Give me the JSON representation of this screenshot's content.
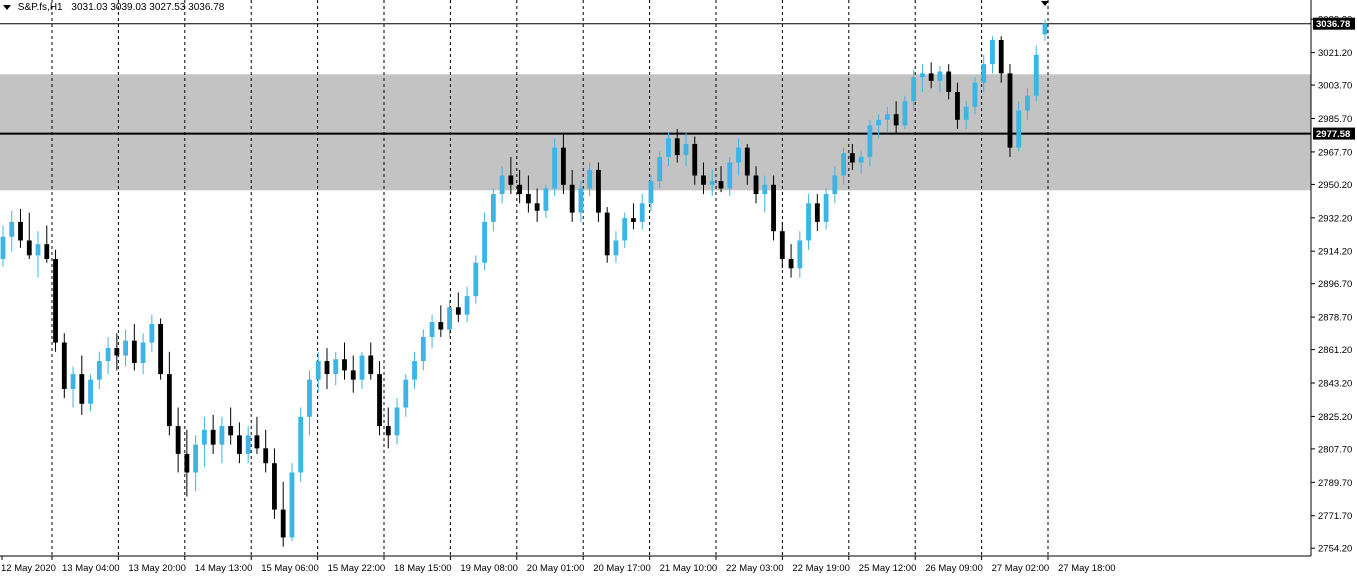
{
  "header": {
    "symbol": "S&P.fs,H1",
    "ohlc": "3031.03 3039.03 3027.53 3036.78"
  },
  "chart_data": {
    "type": "candlestick",
    "symbol": "S&P.fs",
    "timeframe": "H1",
    "ylim": [
      2750,
      3042
    ],
    "yticks": [
      "3039.20",
      "3021.20",
      "3003.70",
      "2985.70",
      "2967.70",
      "2950.20",
      "2932.20",
      "2914.20",
      "2896.70",
      "2878.70",
      "2861.20",
      "2843.20",
      "2825.20",
      "2807.70",
      "2789.70",
      "2771.70",
      "2754.20"
    ],
    "xticks": [
      "12 May 2020",
      "13 May 04:00",
      "13 May 20:00",
      "14 May 13:00",
      "15 May 06:00",
      "15 May 22:00",
      "18 May 15:00",
      "19 May 08:00",
      "20 May 01:00",
      "20 May 17:00",
      "21 May 10:00",
      "22 May 03:00",
      "22 May 19:00",
      "25 May 12:00",
      "26 May 09:00",
      "27 May 02:00",
      "27 May 18:00"
    ],
    "current_price": "3036.78",
    "horizontal_line": "2977.58",
    "zone": [
      2947.0,
      3009.5
    ],
    "bull_color": "#3cb4e5",
    "bear_color": "#000000",
    "zone_color": "#c3c3c3",
    "grid": "vertical dashed at time ticks",
    "series": [
      {
        "o": 2910,
        "h": 2928,
        "l": 2906,
        "c": 2922
      },
      {
        "o": 2922,
        "h": 2936,
        "l": 2914,
        "c": 2930
      },
      {
        "o": 2930,
        "h": 2937,
        "l": 2916,
        "c": 2920
      },
      {
        "o": 2920,
        "h": 2935,
        "l": 2910,
        "c": 2912
      },
      {
        "o": 2912,
        "h": 2925,
        "l": 2900,
        "c": 2918
      },
      {
        "o": 2918,
        "h": 2928,
        "l": 2908,
        "c": 2910
      },
      {
        "o": 2910,
        "h": 2915,
        "l": 2860,
        "c": 2865
      },
      {
        "o": 2865,
        "h": 2870,
        "l": 2835,
        "c": 2840
      },
      {
        "o": 2840,
        "h": 2852,
        "l": 2830,
        "c": 2848
      },
      {
        "o": 2848,
        "h": 2858,
        "l": 2826,
        "c": 2832
      },
      {
        "o": 2832,
        "h": 2848,
        "l": 2828,
        "c": 2845
      },
      {
        "o": 2845,
        "h": 2860,
        "l": 2840,
        "c": 2855
      },
      {
        "o": 2855,
        "h": 2868,
        "l": 2848,
        "c": 2862
      },
      {
        "o": 2862,
        "h": 2870,
        "l": 2850,
        "c": 2858
      },
      {
        "o": 2858,
        "h": 2872,
        "l": 2852,
        "c": 2866
      },
      {
        "o": 2866,
        "h": 2875,
        "l": 2850,
        "c": 2854
      },
      {
        "o": 2854,
        "h": 2870,
        "l": 2848,
        "c": 2865
      },
      {
        "o": 2865,
        "h": 2880,
        "l": 2860,
        "c": 2875
      },
      {
        "o": 2875,
        "h": 2878,
        "l": 2845,
        "c": 2848
      },
      {
        "o": 2848,
        "h": 2860,
        "l": 2815,
        "c": 2820
      },
      {
        "o": 2820,
        "h": 2830,
        "l": 2795,
        "c": 2805
      },
      {
        "o": 2805,
        "h": 2818,
        "l": 2782,
        "c": 2795
      },
      {
        "o": 2795,
        "h": 2815,
        "l": 2785,
        "c": 2810
      },
      {
        "o": 2810,
        "h": 2825,
        "l": 2798,
        "c": 2818
      },
      {
        "o": 2818,
        "h": 2826,
        "l": 2805,
        "c": 2810
      },
      {
        "o": 2810,
        "h": 2825,
        "l": 2800,
        "c": 2820
      },
      {
        "o": 2820,
        "h": 2830,
        "l": 2810,
        "c": 2815
      },
      {
        "o": 2815,
        "h": 2822,
        "l": 2800,
        "c": 2805
      },
      {
        "o": 2805,
        "h": 2820,
        "l": 2800,
        "c": 2815
      },
      {
        "o": 2815,
        "h": 2825,
        "l": 2805,
        "c": 2808
      },
      {
        "o": 2808,
        "h": 2818,
        "l": 2795,
        "c": 2800
      },
      {
        "o": 2800,
        "h": 2808,
        "l": 2770,
        "c": 2775
      },
      {
        "o": 2775,
        "h": 2790,
        "l": 2755,
        "c": 2760
      },
      {
        "o": 2760,
        "h": 2800,
        "l": 2758,
        "c": 2795
      },
      {
        "o": 2795,
        "h": 2830,
        "l": 2790,
        "c": 2825
      },
      {
        "o": 2825,
        "h": 2850,
        "l": 2815,
        "c": 2845
      },
      {
        "o": 2845,
        "h": 2860,
        "l": 2838,
        "c": 2855
      },
      {
        "o": 2855,
        "h": 2862,
        "l": 2840,
        "c": 2848
      },
      {
        "o": 2848,
        "h": 2860,
        "l": 2842,
        "c": 2856
      },
      {
        "o": 2856,
        "h": 2865,
        "l": 2845,
        "c": 2850
      },
      {
        "o": 2850,
        "h": 2858,
        "l": 2838,
        "c": 2845
      },
      {
        "o": 2845,
        "h": 2860,
        "l": 2840,
        "c": 2858
      },
      {
        "o": 2858,
        "h": 2865,
        "l": 2845,
        "c": 2848
      },
      {
        "o": 2848,
        "h": 2855,
        "l": 2815,
        "c": 2820
      },
      {
        "o": 2820,
        "h": 2830,
        "l": 2808,
        "c": 2815
      },
      {
        "o": 2815,
        "h": 2835,
        "l": 2810,
        "c": 2830
      },
      {
        "o": 2830,
        "h": 2848,
        "l": 2825,
        "c": 2845
      },
      {
        "o": 2845,
        "h": 2860,
        "l": 2840,
        "c": 2855
      },
      {
        "o": 2855,
        "h": 2872,
        "l": 2850,
        "c": 2868
      },
      {
        "o": 2868,
        "h": 2880,
        "l": 2862,
        "c": 2876
      },
      {
        "o": 2876,
        "h": 2885,
        "l": 2868,
        "c": 2872
      },
      {
        "o": 2872,
        "h": 2888,
        "l": 2868,
        "c": 2884
      },
      {
        "o": 2884,
        "h": 2892,
        "l": 2876,
        "c": 2880
      },
      {
        "o": 2880,
        "h": 2895,
        "l": 2876,
        "c": 2890
      },
      {
        "o": 2890,
        "h": 2912,
        "l": 2886,
        "c": 2908
      },
      {
        "o": 2908,
        "h": 2935,
        "l": 2904,
        "c": 2930
      },
      {
        "o": 2930,
        "h": 2948,
        "l": 2925,
        "c": 2945
      },
      {
        "o": 2945,
        "h": 2960,
        "l": 2940,
        "c": 2955
      },
      {
        "o": 2955,
        "h": 2965,
        "l": 2945,
        "c": 2950
      },
      {
        "o": 2950,
        "h": 2958,
        "l": 2940,
        "c": 2945
      },
      {
        "o": 2945,
        "h": 2955,
        "l": 2935,
        "c": 2940
      },
      {
        "o": 2940,
        "h": 2948,
        "l": 2930,
        "c": 2936
      },
      {
        "o": 2936,
        "h": 2950,
        "l": 2932,
        "c": 2948
      },
      {
        "o": 2948,
        "h": 2975,
        "l": 2944,
        "c": 2970
      },
      {
        "o": 2970,
        "h": 2978,
        "l": 2945,
        "c": 2950
      },
      {
        "o": 2950,
        "h": 2958,
        "l": 2930,
        "c": 2935
      },
      {
        "o": 2935,
        "h": 2952,
        "l": 2930,
        "c": 2948
      },
      {
        "o": 2948,
        "h": 2962,
        "l": 2944,
        "c": 2958
      },
      {
        "o": 2958,
        "h": 2962,
        "l": 2930,
        "c": 2935
      },
      {
        "o": 2935,
        "h": 2938,
        "l": 2908,
        "c": 2912
      },
      {
        "o": 2912,
        "h": 2925,
        "l": 2908,
        "c": 2920
      },
      {
        "o": 2920,
        "h": 2935,
        "l": 2916,
        "c": 2932
      },
      {
        "o": 2932,
        "h": 2940,
        "l": 2926,
        "c": 2930
      },
      {
        "o": 2930,
        "h": 2945,
        "l": 2926,
        "c": 2940
      },
      {
        "o": 2940,
        "h": 2955,
        "l": 2936,
        "c": 2952
      },
      {
        "o": 2952,
        "h": 2968,
        "l": 2948,
        "c": 2965
      },
      {
        "o": 2965,
        "h": 2978,
        "l": 2960,
        "c": 2975
      },
      {
        "o": 2975,
        "h": 2980,
        "l": 2962,
        "c": 2966
      },
      {
        "o": 2966,
        "h": 2978,
        "l": 2960,
        "c": 2972
      },
      {
        "o": 2972,
        "h": 2976,
        "l": 2950,
        "c": 2955
      },
      {
        "o": 2955,
        "h": 2962,
        "l": 2945,
        "c": 2950
      },
      {
        "o": 2950,
        "h": 2958,
        "l": 2944,
        "c": 2952
      },
      {
        "o": 2952,
        "h": 2960,
        "l": 2946,
        "c": 2948
      },
      {
        "o": 2948,
        "h": 2965,
        "l": 2944,
        "c": 2962
      },
      {
        "o": 2962,
        "h": 2975,
        "l": 2955,
        "c": 2970
      },
      {
        "o": 2970,
        "h": 2972,
        "l": 2950,
        "c": 2955
      },
      {
        "o": 2955,
        "h": 2960,
        "l": 2940,
        "c": 2945
      },
      {
        "o": 2945,
        "h": 2955,
        "l": 2935,
        "c": 2950
      },
      {
        "o": 2950,
        "h": 2955,
        "l": 2920,
        "c": 2925
      },
      {
        "o": 2925,
        "h": 2930,
        "l": 2905,
        "c": 2910
      },
      {
        "o": 2910,
        "h": 2918,
        "l": 2900,
        "c": 2905
      },
      {
        "o": 2905,
        "h": 2925,
        "l": 2900,
        "c": 2920
      },
      {
        "o": 2920,
        "h": 2945,
        "l": 2915,
        "c": 2940
      },
      {
        "o": 2940,
        "h": 2945,
        "l": 2925,
        "c": 2930
      },
      {
        "o": 2930,
        "h": 2948,
        "l": 2926,
        "c": 2945
      },
      {
        "o": 2945,
        "h": 2960,
        "l": 2940,
        "c": 2955
      },
      {
        "o": 2955,
        "h": 2970,
        "l": 2950,
        "c": 2967
      },
      {
        "o": 2967,
        "h": 2972,
        "l": 2958,
        "c": 2962
      },
      {
        "o": 2962,
        "h": 2968,
        "l": 2956,
        "c": 2965
      },
      {
        "o": 2965,
        "h": 2985,
        "l": 2960,
        "c": 2982
      },
      {
        "o": 2982,
        "h": 2988,
        "l": 2975,
        "c": 2985
      },
      {
        "o": 2985,
        "h": 2992,
        "l": 2978,
        "c": 2988
      },
      {
        "o": 2988,
        "h": 2995,
        "l": 2978,
        "c": 2982
      },
      {
        "o": 2982,
        "h": 2998,
        "l": 2980,
        "c": 2995
      },
      {
        "o": 2995,
        "h": 3012,
        "l": 2990,
        "c": 3008
      },
      {
        "o": 3008,
        "h": 3015,
        "l": 3000,
        "c": 3010
      },
      {
        "o": 3010,
        "h": 3016,
        "l": 3002,
        "c": 3006
      },
      {
        "o": 3006,
        "h": 3014,
        "l": 3000,
        "c": 3011
      },
      {
        "o": 3011,
        "h": 3015,
        "l": 2996,
        "c": 3000
      },
      {
        "o": 3000,
        "h": 3005,
        "l": 2980,
        "c": 2985
      },
      {
        "o": 2985,
        "h": 2995,
        "l": 2980,
        "c": 2992
      },
      {
        "o": 2992,
        "h": 3008,
        "l": 2988,
        "c": 3005
      },
      {
        "o": 3005,
        "h": 3020,
        "l": 3000,
        "c": 3015
      },
      {
        "o": 3015,
        "h": 3030,
        "l": 3010,
        "c": 3028
      },
      {
        "o": 3028,
        "h": 3030,
        "l": 3005,
        "c": 3010
      },
      {
        "o": 3010,
        "h": 3015,
        "l": 2965,
        "c": 2970
      },
      {
        "o": 2970,
        "h": 2995,
        "l": 2968,
        "c": 2990
      },
      {
        "o": 2990,
        "h": 3002,
        "l": 2985,
        "c": 2998
      },
      {
        "o": 2998,
        "h": 3025,
        "l": 2995,
        "c": 3020
      },
      {
        "o": 3031.03,
        "h": 3039.03,
        "l": 3027.53,
        "c": 3036.78
      }
    ]
  }
}
